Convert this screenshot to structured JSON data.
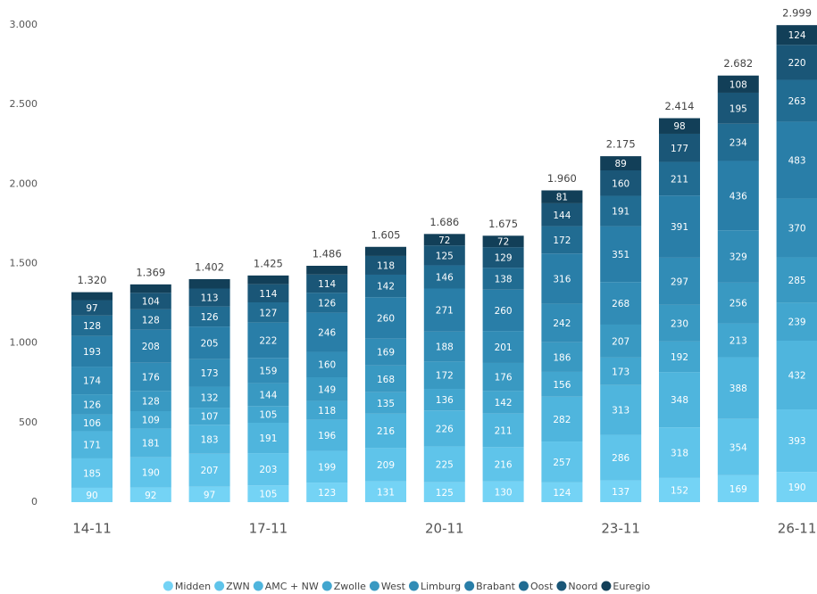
{
  "chart_data": {
    "type": "stacked_bar",
    "categories": [
      "14-11",
      null,
      null,
      "17-11",
      null,
      null,
      "20-11",
      null,
      null,
      "23-11",
      null,
      null,
      "26-11"
    ],
    "series": [
      {
        "name": "Midden",
        "color": "#74d3f5",
        "values": [
          90,
          92,
          97,
          105,
          123,
          131,
          125,
          130,
          124,
          137,
          152,
          169,
          190
        ]
      },
      {
        "name": "ZWN",
        "color": "#5fc4ea",
        "values": [
          185,
          190,
          207,
          203,
          199,
          209,
          225,
          216,
          257,
          286,
          318,
          354,
          393
        ]
      },
      {
        "name": "AMC + NW",
        "color": "#4fb5dd",
        "values": [
          171,
          181,
          183,
          191,
          196,
          216,
          226,
          211,
          282,
          313,
          348,
          388,
          432
        ]
      },
      {
        "name": "Zwolle",
        "color": "#42a6cf",
        "values": [
          106,
          109,
          107,
          105,
          118,
          135,
          136,
          142,
          156,
          173,
          192,
          213,
          239
        ]
      },
      {
        "name": "West",
        "color": "#3999c2",
        "values": [
          126,
          128,
          132,
          144,
          149,
          168,
          172,
          176,
          186,
          207,
          230,
          256,
          285
        ]
      },
      {
        "name": "Limburg",
        "color": "#318cb6",
        "values": [
          174,
          176,
          173,
          159,
          160,
          169,
          188,
          201,
          242,
          268,
          297,
          329,
          370
        ]
      },
      {
        "name": "Brabant",
        "color": "#297ea8",
        "values": [
          193,
          208,
          205,
          222,
          246,
          260,
          271,
          260,
          316,
          351,
          391,
          436,
          483
        ]
      },
      {
        "name": "Oost",
        "color": "#216c92",
        "values": [
          128,
          128,
          126,
          127,
          126,
          142,
          146,
          138,
          172,
          191,
          211,
          234,
          263
        ]
      },
      {
        "name": "Noord",
        "color": "#1a5677",
        "values": [
          97,
          104,
          113,
          114,
          114,
          118,
          125,
          129,
          144,
          160,
          177,
          195,
          220
        ]
      },
      {
        "name": "Euregio",
        "color": "#123f58",
        "values": [
          50,
          53,
          59,
          55,
          55,
          57,
          72,
          72,
          81,
          89,
          98,
          108,
          124
        ]
      }
    ],
    "totals": {
      "values": [
        1320,
        1369,
        1402,
        1425,
        1486,
        1605,
        1686,
        1675,
        1960,
        2175,
        2414,
        2682,
        2999
      ],
      "value_labels": [
        "1.320",
        "1.369",
        "1.402",
        "1.425",
        "1.486",
        "1.605",
        "1.686",
        "1.675",
        "1.960",
        "2.175",
        "2.414",
        "2.682",
        "2.999"
      ]
    },
    "ylim": [
      0,
      3000
    ],
    "yticks": [
      0,
      500,
      {
        "value": 1000,
        "label": "1.000"
      },
      {
        "value": 1500,
        "label": "1.500"
      },
      {
        "value": 2000,
        "label": "2.000"
      },
      {
        "value": 2500,
        "label": "2.500"
      },
      {
        "value": 3000,
        "label": "3.000"
      }
    ],
    "grid": false
  }
}
